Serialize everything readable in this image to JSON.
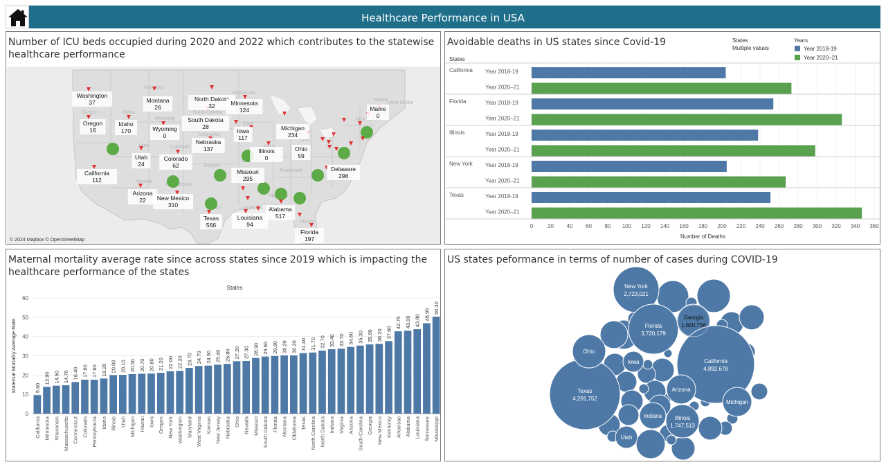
{
  "header": {
    "title": "Healthcare Performance in USA",
    "home_icon": "home-icon",
    "bar_color": "#1f6f8b"
  },
  "icu_map": {
    "title": "Number of ICU beds occupied during 2020 and 2022 which contributes to the statewise healthcare performance",
    "attribution": "© 2024 Mapbox © OpenStreetMap",
    "marker_color": "#5cab46",
    "state_labels": [
      {
        "name": "Washington",
        "value": "37"
      },
      {
        "name": "Montana",
        "value": "26"
      },
      {
        "name": "North Dakota",
        "value": "32"
      },
      {
        "name": "Minnesota",
        "value": "124"
      },
      {
        "name": "Maine",
        "value": "0"
      },
      {
        "name": "Oregon",
        "value": "16"
      },
      {
        "name": "Idaho",
        "value": "170"
      },
      {
        "name": "Wyoming",
        "value": "0"
      },
      {
        "name": "South Dakota",
        "value": "28"
      },
      {
        "name": "Michigan",
        "value": "234"
      },
      {
        "name": "Iowa",
        "value": "117"
      },
      {
        "name": "Nebraska",
        "value": "137"
      },
      {
        "name": "Illinois",
        "value": "0"
      },
      {
        "name": "Ohio",
        "value": "59"
      },
      {
        "name": "Utah",
        "value": "24"
      },
      {
        "name": "Colorado",
        "value": "62"
      },
      {
        "name": "California",
        "value": "112"
      },
      {
        "name": "Missouri",
        "value": "295"
      },
      {
        "name": "Delaware",
        "value": "298"
      },
      {
        "name": "Arizona",
        "value": "22"
      },
      {
        "name": "New Mexico",
        "value": "310"
      },
      {
        "name": "Alabama",
        "value": "517"
      },
      {
        "name": "Texas",
        "value": "566"
      },
      {
        "name": "Louisiana",
        "value": "94"
      },
      {
        "name": "Florida",
        "value": "197"
      }
    ],
    "background_labels": [
      "Montana",
      "Minnesota",
      "Maine",
      "Nova Scotia",
      "New York",
      "Oregon",
      "Idaho",
      "Wyoming",
      "South Dakota",
      "Iowa",
      "Nebraska",
      "Illinois",
      "Ohio",
      "Utah",
      "Colorado",
      "Kansas",
      "Missouri",
      "Tennessee",
      "Alabama",
      "Arizona",
      "New Mexico",
      "Texas",
      "Louisiana",
      "Florida"
    ]
  },
  "avoidable_deaths": {
    "title": "Avoidable deaths in US states since Covid-19",
    "filter": {
      "label": "States",
      "value": "Multiple values"
    },
    "row_header": "States",
    "chart_data": {
      "type": "bar",
      "orientation": "horizontal",
      "categories": [
        "California",
        "Florida",
        "Illinois",
        "New York",
        "Texas"
      ],
      "series": [
        {
          "name": "Year 2018-19",
          "color": "#4e79a7",
          "values": [
            204,
            254,
            238,
            205,
            251
          ]
        },
        {
          "name": "Year 2020-21",
          "color": "#59a14f",
          "values": [
            273,
            326,
            298,
            267,
            347
          ]
        }
      ],
      "row_labels": [
        "Year 2018-19",
        "Year 2020–21"
      ],
      "legend_title": "Years",
      "legend_labels": [
        "Year 2018-19",
        "Year 2020–21"
      ],
      "xlabel": "Number of Deaths",
      "xlim": [
        0,
        360
      ],
      "xticks": [
        "0",
        "20",
        "40",
        "60",
        "80",
        "100",
        "120",
        "140",
        "160",
        "180",
        "200",
        "220",
        "240",
        "260",
        "280",
        "300",
        "320",
        "340",
        "360"
      ],
      "legend_position": "top-right"
    }
  },
  "maternal": {
    "title": "Maternal mortality average rate since across states since 2019 which is impacting the healthcare performance of the states",
    "chart_data": {
      "type": "bar",
      "title": "States",
      "ylabel": "Maternal Mortality Average Rate",
      "ylim": [
        0,
        60
      ],
      "yticks": [
        "0",
        "10",
        "20",
        "30",
        "40",
        "50",
        "60"
      ],
      "color": "#4e79a7",
      "categories": [
        "California",
        "Minnesota",
        "Wisconsin",
        "Massachusetts",
        "Connecticut",
        "Colorado",
        "Pennsylvania",
        "Idaho",
        "Illinois",
        "Utah",
        "Michigan",
        "Hawaii",
        "Iowa",
        "Oregon",
        "New York",
        "Washington",
        "Maryland",
        "West Virginia",
        "Kansas",
        "New Jersey",
        "Nebraska",
        "Ohio",
        "Nevada",
        "Missouri",
        "South Dakota",
        "Florida",
        "Montana",
        "Oklahoma",
        "Texas",
        "North Carolina",
        "North Dakota",
        "Indiana",
        "Virginia",
        "Arizona",
        "South Carolina",
        "Georgia",
        "New Mexico",
        "Kentucky",
        "Arkansas",
        "Alabama",
        "Louisiana",
        "Tennessee",
        "Mississippi"
      ],
      "values": [
        9.6,
        13.9,
        14.5,
        14.7,
        16.4,
        17.6,
        17.6,
        18.2,
        20.0,
        20.1,
        20.5,
        20.7,
        20.8,
        21.2,
        22.0,
        22.2,
        23.7,
        24.7,
        24.9,
        25.4,
        25.8,
        27.2,
        27.3,
        28.9,
        29.6,
        29.9,
        30.2,
        30.2,
        31.4,
        31.7,
        32.7,
        33.4,
        33.7,
        34.6,
        35.3,
        35.9,
        36.2,
        37.6,
        42.7,
        43.0,
        43.8,
        46.9,
        50.3
      ],
      "labels": [
        "9.60",
        "13.90",
        "14.50",
        "14.70",
        "16.40",
        "17.60",
        "17.60",
        "18.20",
        "20.00",
        "20.10",
        "20.50",
        "20.70",
        "20.80",
        "21.20",
        "22.00",
        "22.20",
        "23.70",
        "24.70",
        "24.90",
        "25.40",
        "25.80",
        "27.20",
        "27.30",
        "28.90",
        "29.60",
        "29.90",
        "30.20",
        "30.20",
        "31.40",
        "31.70",
        "32.70",
        "33.40",
        "33.70",
        "34.60",
        "35.30",
        "35.90",
        "36.20",
        "37.60",
        "42.70",
        "43.00",
        "43.80",
        "46.90",
        "50.30"
      ]
    }
  },
  "covid_cases": {
    "title": "US states peformance in terms of number of cases during COVID-19",
    "bubble_color": "#4e79a7",
    "labeled_bubbles": [
      {
        "name": "New York",
        "value": "2,723,021"
      },
      {
        "name": "Florida",
        "value": "3,720,179"
      },
      {
        "name": "Georgia",
        "value": "1,650,756"
      },
      {
        "name": "California",
        "value": "4,892,678"
      },
      {
        "name": "Texas",
        "value": "4,291,752"
      },
      {
        "name": "Illinois",
        "value": "1,747,513"
      },
      {
        "name": "Ohio",
        "value": ""
      },
      {
        "name": "Iowa",
        "value": ""
      },
      {
        "name": "Arizona",
        "value": ""
      },
      {
        "name": "Michigan",
        "value": ""
      },
      {
        "name": "Indiana",
        "value": ""
      },
      {
        "name": "Utah",
        "value": ""
      }
    ]
  }
}
